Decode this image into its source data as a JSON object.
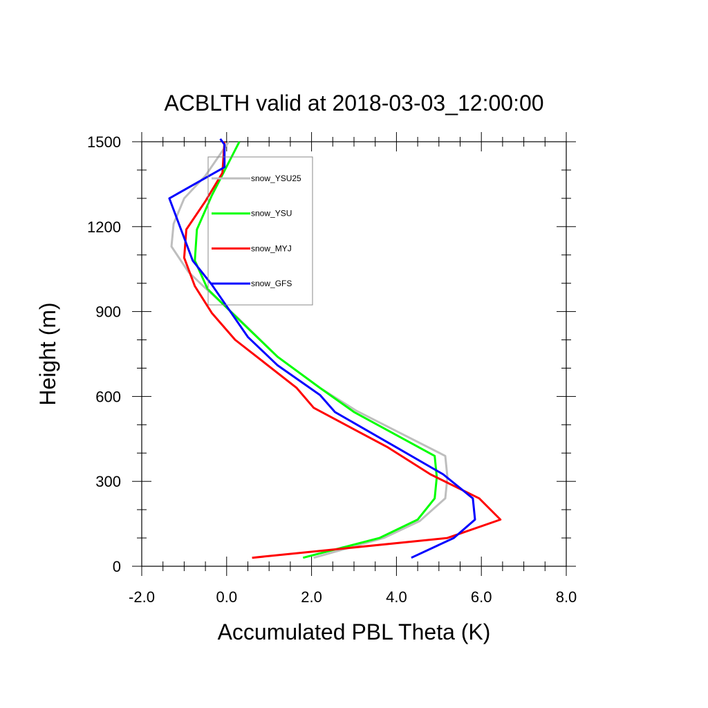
{
  "chart_data": {
    "type": "line",
    "title": "ACBLTH valid at 2018-03-03_12:00:00",
    "xlabel": "Accumulated PBL Theta (K)",
    "ylabel": "Height (m)",
    "xlim": [
      -2.0,
      8.0
    ],
    "ylim": [
      0,
      1500
    ],
    "xticks": [
      "-2.0",
      "0.0",
      "2.0",
      "4.0",
      "6.0",
      "8.0"
    ],
    "yticks": [
      "0",
      "300",
      "600",
      "900",
      "1200",
      "1500"
    ],
    "legend_position": "top-left, inside plot",
    "series": [
      {
        "name": "snow_YSU25",
        "color": "#bebebe",
        "points": [
          [
            2.05,
            30
          ],
          [
            3.7,
            100
          ],
          [
            4.55,
            160
          ],
          [
            5.15,
            240
          ],
          [
            5.2,
            315
          ],
          [
            5.15,
            390
          ],
          [
            3.05,
            550
          ],
          [
            2.2,
            630
          ],
          [
            1.2,
            740
          ],
          [
            0.25,
            880
          ],
          [
            -0.55,
            990
          ],
          [
            -0.9,
            1040
          ],
          [
            -1.3,
            1130
          ],
          [
            -1.25,
            1210
          ],
          [
            -1.0,
            1300
          ],
          [
            -0.5,
            1380
          ],
          [
            0.05,
            1500
          ]
        ]
      },
      {
        "name": "snow_YSU",
        "color": "#00ff00",
        "points": [
          [
            1.8,
            30
          ],
          [
            3.6,
            100
          ],
          [
            4.5,
            165
          ],
          [
            4.9,
            240
          ],
          [
            4.95,
            315
          ],
          [
            4.9,
            390
          ],
          [
            3.0,
            545
          ],
          [
            2.2,
            630
          ],
          [
            1.2,
            740
          ],
          [
            0.3,
            870
          ],
          [
            -0.45,
            980
          ],
          [
            -0.75,
            1080
          ],
          [
            -0.7,
            1190
          ],
          [
            -0.35,
            1310
          ],
          [
            0.3,
            1500
          ]
        ]
      },
      {
        "name": "snow_MYJ",
        "color": "#ff0000",
        "points": [
          [
            0.6,
            30
          ],
          [
            5.2,
            100
          ],
          [
            6.45,
            165
          ],
          [
            5.95,
            240
          ],
          [
            4.8,
            325
          ],
          [
            3.8,
            420
          ],
          [
            2.05,
            560
          ],
          [
            1.65,
            630
          ],
          [
            0.8,
            730
          ],
          [
            0.2,
            800
          ],
          [
            -0.35,
            895
          ],
          [
            -0.75,
            990
          ],
          [
            -1.0,
            1090
          ],
          [
            -0.95,
            1190
          ],
          [
            -0.5,
            1290
          ],
          [
            -0.1,
            1390
          ],
          [
            -0.05,
            1500
          ]
        ]
      },
      {
        "name": "snow_GFS",
        "color": "#0000ff",
        "points": [
          [
            4.35,
            30
          ],
          [
            5.35,
            100
          ],
          [
            5.85,
            165
          ],
          [
            5.8,
            240
          ],
          [
            5.1,
            325
          ],
          [
            4.0,
            420
          ],
          [
            2.55,
            545
          ],
          [
            2.2,
            605
          ],
          [
            1.2,
            710
          ],
          [
            0.5,
            810
          ],
          [
            -0.35,
            995
          ],
          [
            -0.8,
            1080
          ],
          [
            -1.35,
            1300
          ],
          [
            -0.05,
            1410
          ],
          [
            -0.05,
            1490
          ],
          [
            -0.15,
            1510
          ]
        ]
      }
    ]
  }
}
